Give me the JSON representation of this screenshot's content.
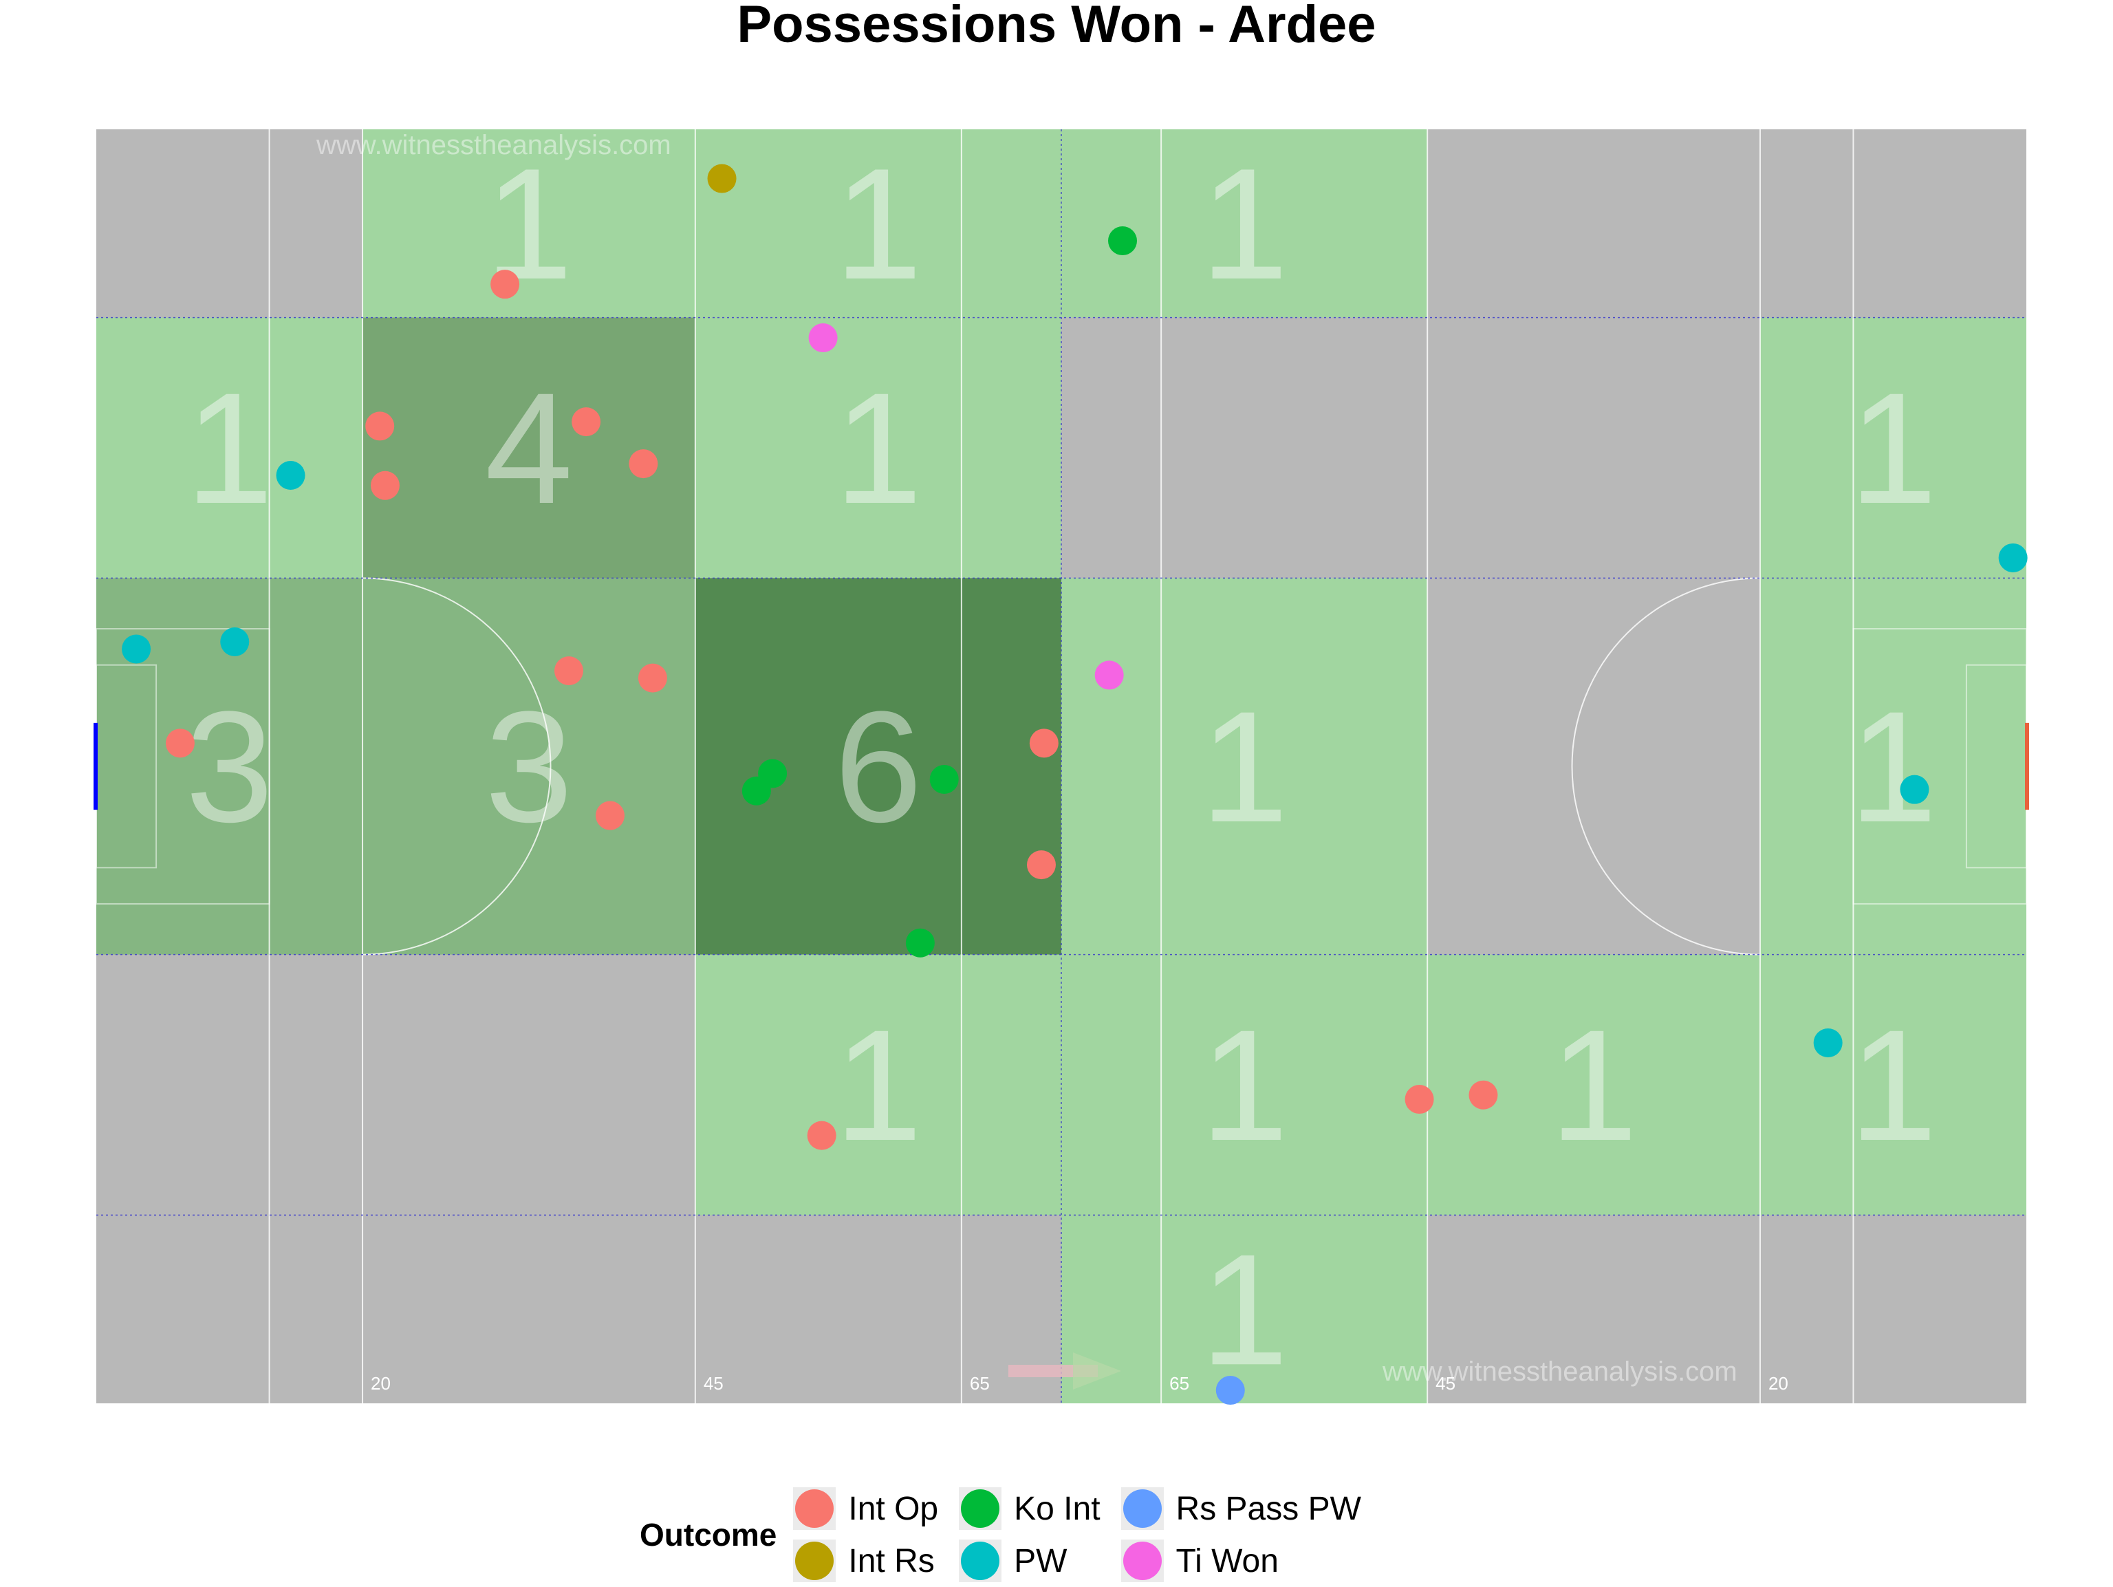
{
  "title": "Possessions Won - Ardee",
  "watermark": "www.witnesstheanalysis.com",
  "pitch": {
    "distance_labels": [
      "20",
      "45",
      "65",
      "65",
      "45",
      "20"
    ],
    "colors": {
      "empty": "#b8b8b8",
      "low": "#a1d6a0",
      "mid": "#85b682",
      "high4": "#78a673",
      "high6": "#538a51"
    }
  },
  "chart_data": {
    "type": "scatter",
    "title": "Possessions Won - Ardee",
    "legend_title": "Outcome",
    "legend_position": "bottom",
    "xlim": [
      0,
      145
    ],
    "ylim": [
      0,
      88
    ],
    "zone_counts": [
      {
        "x0": 20,
        "x1": 45,
        "y0": 75,
        "y1": 88,
        "count": 1
      },
      {
        "x0": 45,
        "x1": 72.5,
        "y0": 75,
        "y1": 88,
        "count": 1
      },
      {
        "x0": 72.5,
        "x1": 100,
        "y0": 75,
        "y1": 88,
        "count": 1
      },
      {
        "x0": 0,
        "x1": 20,
        "y0": 57,
        "y1": 75,
        "count": 1
      },
      {
        "x0": 20,
        "x1": 45,
        "y0": 57,
        "y1": 75,
        "count": 4
      },
      {
        "x0": 45,
        "x1": 72.5,
        "y0": 57,
        "y1": 75,
        "count": 1
      },
      {
        "x0": 125,
        "x1": 145,
        "y0": 57,
        "y1": 75,
        "count": 1
      },
      {
        "x0": 0,
        "x1": 20,
        "y0": 31,
        "y1": 57,
        "count": 3
      },
      {
        "x0": 20,
        "x1": 45,
        "y0": 31,
        "y1": 57,
        "count": 3
      },
      {
        "x0": 45,
        "x1": 72.5,
        "y0": 31,
        "y1": 57,
        "count": 6
      },
      {
        "x0": 72.5,
        "x1": 100,
        "y0": 31,
        "y1": 57,
        "count": 1
      },
      {
        "x0": 125,
        "x1": 145,
        "y0": 31,
        "y1": 57,
        "count": 1
      },
      {
        "x0": 45,
        "x1": 72.5,
        "y0": 13,
        "y1": 31,
        "count": 1
      },
      {
        "x0": 72.5,
        "x1": 100,
        "y0": 13,
        "y1": 31,
        "count": 1
      },
      {
        "x0": 100,
        "x1": 125,
        "y0": 13,
        "y1": 31,
        "count": 1
      },
      {
        "x0": 125,
        "x1": 145,
        "y0": 13,
        "y1": 31,
        "count": 1
      },
      {
        "x0": 72.5,
        "x1": 100,
        "y0": 0,
        "y1": 13,
        "count": 1
      }
    ],
    "series": [
      {
        "name": "Int Op",
        "color": "#f8766d",
        "points": [
          [
            30.7,
            77.3
          ],
          [
            21.3,
            67.5
          ],
          [
            36.8,
            67.8
          ],
          [
            41.1,
            64.9
          ],
          [
            21.7,
            63.4
          ],
          [
            35.5,
            50.6
          ],
          [
            41.8,
            50.1
          ],
          [
            6.3,
            45.6
          ],
          [
            38.6,
            40.6
          ],
          [
            71.2,
            45.6
          ],
          [
            71.0,
            37.2
          ],
          [
            54.5,
            18.5
          ],
          [
            99.4,
            21.0
          ],
          [
            104.2,
            21.3
          ]
        ]
      },
      {
        "name": "Int Rs",
        "color": "#b79f00",
        "points": [
          [
            47.0,
            84.6
          ]
        ]
      },
      {
        "name": "Ko Int",
        "color": "#00ba38",
        "points": [
          [
            77.1,
            80.3
          ],
          [
            50.8,
            43.5
          ],
          [
            49.6,
            42.3
          ],
          [
            63.7,
            43.1
          ],
          [
            61.9,
            31.8
          ]
        ]
      },
      {
        "name": "PW",
        "color": "#00bfc4",
        "points": [
          [
            14.6,
            64.1
          ],
          [
            3.0,
            52.1
          ],
          [
            10.4,
            52.6
          ],
          [
            144.0,
            58.4
          ],
          [
            136.6,
            42.4
          ],
          [
            130.1,
            24.9
          ]
        ]
      },
      {
        "name": "Rs Pass PW",
        "color": "#619cff",
        "points": [
          [
            85.2,
            0.9
          ]
        ]
      },
      {
        "name": "Ti Won",
        "color": "#f564e3",
        "points": [
          [
            54.6,
            73.6
          ],
          [
            76.1,
            50.3
          ]
        ]
      }
    ]
  }
}
